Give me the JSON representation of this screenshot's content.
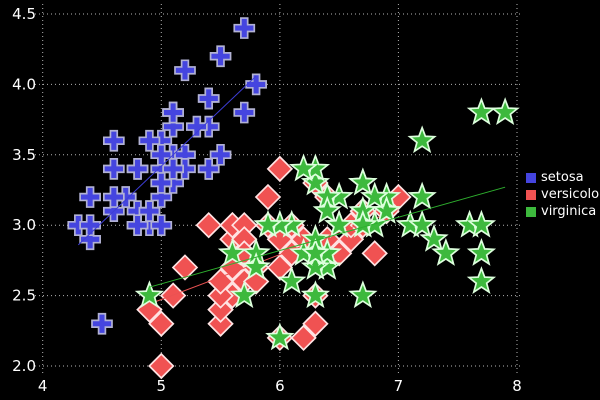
{
  "figure": {
    "background": "#000000",
    "text_color": "#ffffff",
    "grid_color": "#b3b3b3"
  },
  "chart_data": {
    "type": "scatter",
    "title": "",
    "xlabel": "",
    "ylabel": "",
    "xlim": [
      4,
      8
    ],
    "ylim": [
      2.0,
      4.5
    ],
    "xticks": {
      "values": [
        4,
        5,
        6,
        7,
        8
      ],
      "labels": [
        "4",
        "5",
        "6",
        "7",
        "8"
      ]
    },
    "yticks": {
      "values": [
        2.0,
        2.5,
        3.0,
        3.5,
        4.0,
        4.5
      ],
      "labels": [
        "2.0",
        "2.5",
        "3.0",
        "3.5",
        "4.0",
        "4.5"
      ]
    },
    "grid": true,
    "grid_style": "dotted",
    "legend_position": "right-outside",
    "series": [
      {
        "name": "setosa",
        "marker": "plus",
        "color": "#4545df",
        "marker_stroke": "#b2b2d4",
        "line_color": "#3d3dd6",
        "trend": [
          [
            4.3,
            2.86
          ],
          [
            5.8,
            4.06
          ]
        ],
        "points": [
          [
            5.1,
            3.5
          ],
          [
            4.9,
            3.0
          ],
          [
            4.7,
            3.2
          ],
          [
            4.6,
            3.1
          ],
          [
            5.0,
            3.6
          ],
          [
            5.4,
            3.9
          ],
          [
            4.6,
            3.4
          ],
          [
            5.0,
            3.4
          ],
          [
            4.4,
            2.9
          ],
          [
            4.9,
            3.1
          ],
          [
            5.4,
            3.7
          ],
          [
            4.8,
            3.4
          ],
          [
            4.8,
            3.0
          ],
          [
            4.3,
            3.0
          ],
          [
            5.8,
            4.0
          ],
          [
            5.7,
            4.4
          ],
          [
            5.4,
            3.9
          ],
          [
            5.1,
            3.5
          ],
          [
            5.7,
            3.8
          ],
          [
            5.1,
            3.8
          ],
          [
            5.4,
            3.4
          ],
          [
            5.1,
            3.7
          ],
          [
            4.6,
            3.6
          ],
          [
            5.1,
            3.3
          ],
          [
            4.8,
            3.4
          ],
          [
            5.0,
            3.0
          ],
          [
            5.0,
            3.4
          ],
          [
            5.2,
            3.5
          ],
          [
            5.2,
            3.4
          ],
          [
            4.7,
            3.2
          ],
          [
            4.8,
            3.1
          ],
          [
            5.4,
            3.4
          ],
          [
            5.2,
            4.1
          ],
          [
            5.5,
            4.2
          ],
          [
            4.9,
            3.1
          ],
          [
            5.0,
            3.2
          ],
          [
            5.5,
            3.5
          ],
          [
            4.9,
            3.6
          ],
          [
            4.4,
            3.0
          ],
          [
            5.1,
            3.4
          ],
          [
            5.0,
            3.5
          ],
          [
            4.5,
            2.3
          ],
          [
            4.4,
            3.2
          ],
          [
            5.0,
            3.5
          ],
          [
            5.1,
            3.8
          ],
          [
            4.8,
            3.0
          ],
          [
            5.1,
            3.8
          ],
          [
            4.6,
            3.2
          ],
          [
            5.3,
            3.7
          ],
          [
            5.0,
            3.3
          ]
        ]
      },
      {
        "name": "versicolor",
        "marker": "diamond",
        "color": "#f05252",
        "marker_stroke": "#ffe3e3",
        "line_color": "#ea5252",
        "trend": [
          [
            4.9,
            2.44
          ],
          [
            7.0,
            3.11
          ]
        ],
        "points": [
          [
            7.0,
            3.2
          ],
          [
            6.4,
            3.2
          ],
          [
            6.9,
            3.1
          ],
          [
            5.5,
            2.3
          ],
          [
            6.5,
            2.8
          ],
          [
            5.7,
            2.8
          ],
          [
            6.3,
            3.3
          ],
          [
            4.9,
            2.4
          ],
          [
            6.6,
            2.9
          ],
          [
            5.2,
            2.7
          ],
          [
            5.0,
            2.0
          ],
          [
            5.9,
            3.0
          ],
          [
            6.0,
            2.2
          ],
          [
            6.1,
            2.9
          ],
          [
            5.6,
            2.9
          ],
          [
            6.7,
            3.1
          ],
          [
            5.6,
            3.0
          ],
          [
            5.8,
            2.7
          ],
          [
            6.2,
            2.2
          ],
          [
            5.6,
            2.5
          ],
          [
            5.9,
            3.2
          ],
          [
            6.1,
            2.8
          ],
          [
            6.3,
            2.5
          ],
          [
            6.1,
            2.8
          ],
          [
            6.4,
            2.9
          ],
          [
            6.6,
            3.0
          ],
          [
            6.8,
            2.8
          ],
          [
            6.7,
            3.0
          ],
          [
            6.0,
            2.9
          ],
          [
            5.7,
            2.6
          ],
          [
            5.5,
            2.4
          ],
          [
            5.5,
            2.4
          ],
          [
            5.8,
            2.7
          ],
          [
            6.0,
            2.7
          ],
          [
            5.4,
            3.0
          ],
          [
            6.0,
            3.4
          ],
          [
            6.7,
            3.1
          ],
          [
            6.3,
            2.3
          ],
          [
            5.6,
            3.0
          ],
          [
            5.5,
            2.5
          ],
          [
            5.5,
            2.6
          ],
          [
            6.1,
            3.0
          ],
          [
            5.8,
            2.6
          ],
          [
            5.0,
            2.3
          ],
          [
            5.6,
            2.7
          ],
          [
            5.7,
            3.0
          ],
          [
            5.7,
            2.9
          ],
          [
            6.2,
            2.9
          ],
          [
            5.1,
            2.5
          ],
          [
            5.7,
            2.8
          ]
        ]
      },
      {
        "name": "virginica",
        "marker": "star",
        "color": "#3db93d",
        "marker_stroke": "#ddffdd",
        "line_color": "#2eb02e",
        "trend": [
          [
            4.9,
            2.56
          ],
          [
            7.9,
            3.27
          ]
        ],
        "points": [
          [
            6.3,
            3.3
          ],
          [
            5.8,
            2.7
          ],
          [
            7.1,
            3.0
          ],
          [
            6.3,
            2.9
          ],
          [
            6.5,
            3.0
          ],
          [
            7.6,
            3.0
          ],
          [
            4.9,
            2.5
          ],
          [
            7.3,
            2.9
          ],
          [
            6.7,
            2.5
          ],
          [
            7.2,
            3.6
          ],
          [
            6.5,
            3.2
          ],
          [
            6.4,
            2.7
          ],
          [
            6.8,
            3.0
          ],
          [
            5.7,
            2.5
          ],
          [
            5.8,
            2.8
          ],
          [
            6.4,
            3.2
          ],
          [
            6.5,
            3.0
          ],
          [
            7.7,
            3.8
          ],
          [
            7.7,
            2.6
          ],
          [
            6.0,
            2.2
          ],
          [
            6.9,
            3.2
          ],
          [
            5.6,
            2.8
          ],
          [
            7.7,
            2.8
          ],
          [
            6.3,
            2.7
          ],
          [
            6.7,
            3.3
          ],
          [
            7.2,
            3.2
          ],
          [
            6.2,
            2.8
          ],
          [
            6.1,
            3.0
          ],
          [
            6.4,
            2.8
          ],
          [
            7.2,
            3.0
          ],
          [
            7.4,
            2.8
          ],
          [
            7.9,
            3.8
          ],
          [
            6.4,
            2.8
          ],
          [
            6.3,
            2.8
          ],
          [
            6.1,
            2.6
          ],
          [
            7.7,
            3.0
          ],
          [
            6.3,
            3.4
          ],
          [
            6.4,
            3.1
          ],
          [
            6.0,
            3.0
          ],
          [
            6.9,
            3.1
          ],
          [
            6.7,
            3.1
          ],
          [
            6.9,
            3.1
          ],
          [
            5.8,
            2.7
          ],
          [
            6.8,
            3.2
          ],
          [
            6.7,
            3.3
          ],
          [
            6.7,
            3.0
          ],
          [
            6.3,
            2.5
          ],
          [
            6.5,
            3.0
          ],
          [
            6.2,
            3.4
          ],
          [
            5.9,
            3.0
          ]
        ]
      }
    ]
  }
}
